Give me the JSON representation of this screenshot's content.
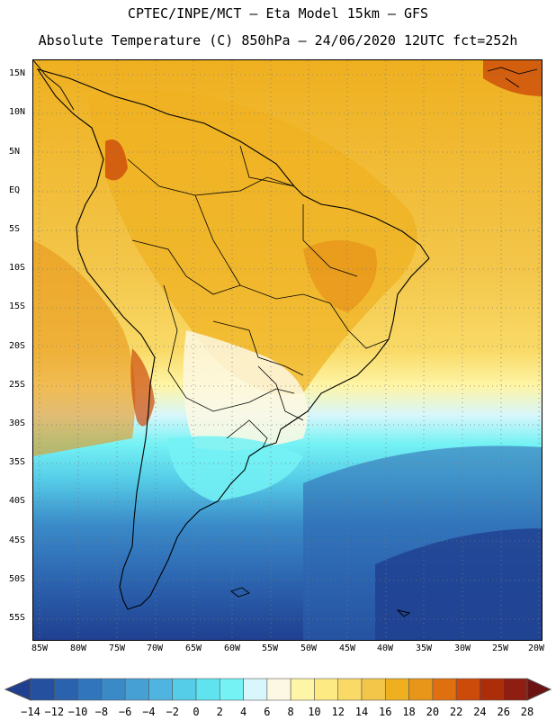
{
  "header": {
    "line1": "CPTEC/INPE/MCT —  Eta Model 15km — GFS",
    "line2": "Absolute Temperature (C) 850hPa — 24/06/2020 12UTC fct=252h"
  },
  "map": {
    "region": "South America",
    "lat_labels": [
      "15N",
      "10N",
      "5N",
      "EQ",
      "5S",
      "10S",
      "15S",
      "20S",
      "25S",
      "30S",
      "35S",
      "40S",
      "45S",
      "50S",
      "55S"
    ],
    "lon_labels": [
      "85W",
      "80W",
      "75W",
      "70W",
      "65W",
      "60W",
      "55W",
      "50W",
      "45W",
      "40W",
      "35W",
      "30W",
      "25W",
      "20W"
    ]
  },
  "colorbar": {
    "labels": [
      "-14",
      "-12",
      "-10",
      "-8",
      "-6",
      "-4",
      "-2",
      "0",
      "2",
      "4",
      "6",
      "8",
      "10",
      "12",
      "14",
      "16",
      "18",
      "20",
      "22",
      "24",
      "26",
      "28"
    ],
    "colors": [
      "#1f3f8f",
      "#25509f",
      "#2b62ae",
      "#3176bd",
      "#3a8ac8",
      "#47a0d4",
      "#4fb5e0",
      "#56cde8",
      "#5fe3ef",
      "#74f2f4",
      "#d8f6fb",
      "#fdf8e3",
      "#fef5a6",
      "#fdea82",
      "#f9da67",
      "#f3c64a",
      "#efb020",
      "#e8961a",
      "#e06f10",
      "#cc4a0a",
      "#ab2d0a",
      "#8e1d12",
      "#6c1212"
    ]
  }
}
